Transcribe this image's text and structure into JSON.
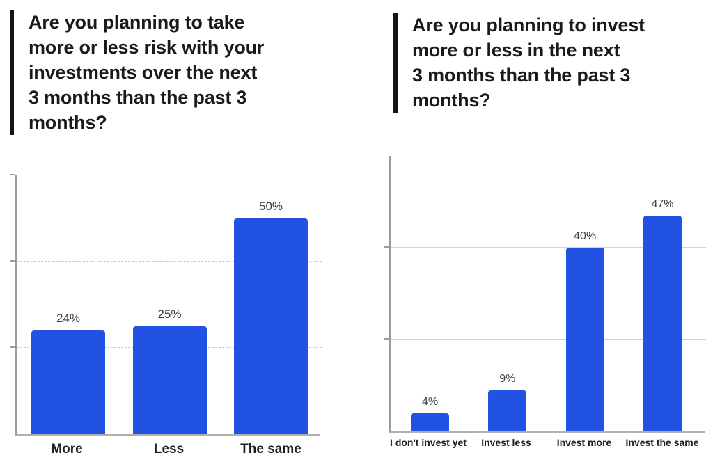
{
  "accent_color": "#2152e4",
  "headers": [
    {
      "title": "Are you planning to take\nmore or less risk with your\ninvestments over the next\n3 months than the past 3\nmonths?"
    },
    {
      "title": "Are you planning to invest\nmore or less in the next\n3 months than the past 3\nmonths?"
    }
  ],
  "chart_data": [
    {
      "type": "bar",
      "title": "Are you planning to take more or less risk with your investments over the next 3 months than the past 3 months?",
      "categories": [
        "More",
        "Less",
        "The same"
      ],
      "values": [
        24,
        25,
        50
      ],
      "data_labels": [
        "24%",
        "25%",
        "50%"
      ],
      "unit": "%",
      "xlabel": "",
      "ylabel": "",
      "ylim": [
        0,
        60
      ],
      "gridlines": [
        20,
        40,
        60
      ],
      "grid_style": "dashed",
      "bar_color": "#2152e4",
      "legend": false
    },
    {
      "type": "bar",
      "title": "Are you planning to invest more or less in the next 3 months than the past 3 months?",
      "categories": [
        "I don't invest yet",
        "Invest less",
        "Invest more",
        "Invest the same"
      ],
      "values": [
        4,
        9,
        40,
        47
      ],
      "data_labels": [
        "4%",
        "9%",
        "40%",
        "47%"
      ],
      "unit": "%",
      "xlabel": "",
      "ylabel": "",
      "ylim": [
        0,
        60
      ],
      "gridlines": [
        20,
        40
      ],
      "grid_style": "solid",
      "bar_color": "#2152e4",
      "legend": false
    }
  ]
}
